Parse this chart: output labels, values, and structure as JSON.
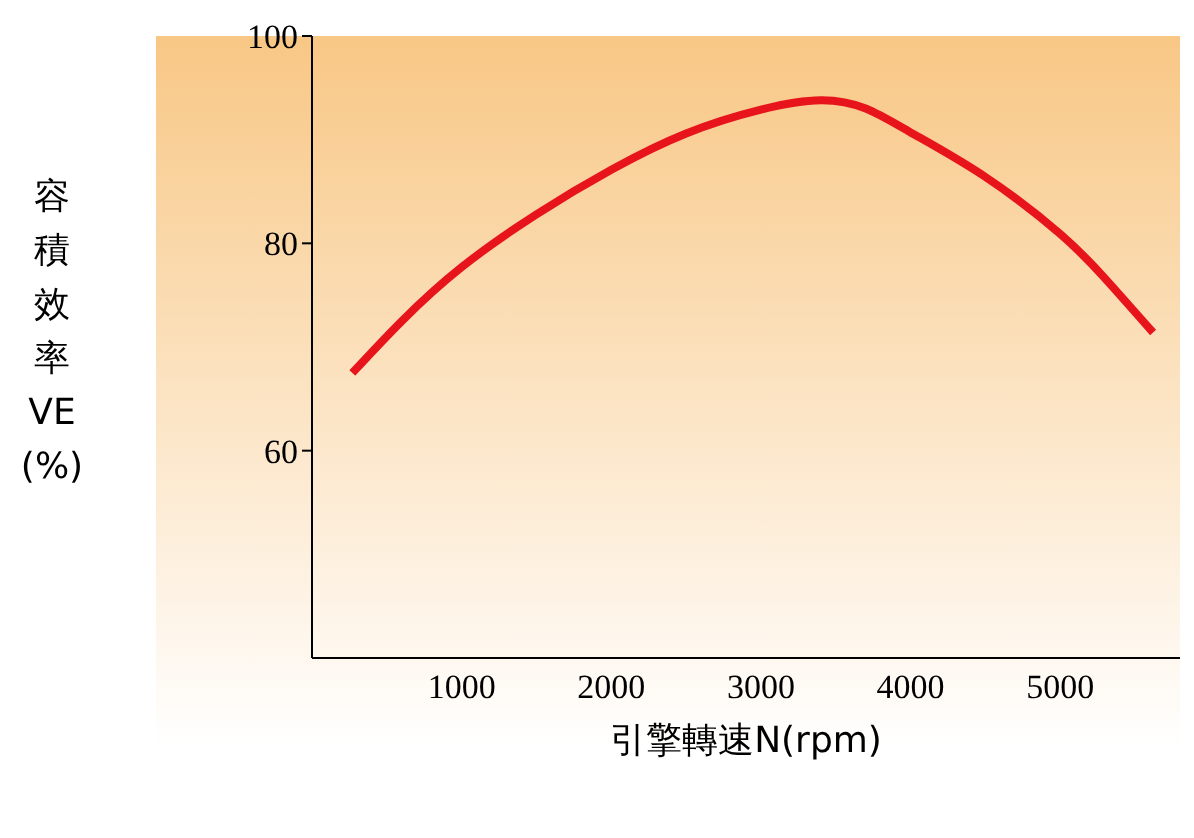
{
  "chart_data": {
    "type": "line",
    "xlabel": "引擎轉速N(rpm)",
    "ylabel": "容積效率 VE (%)",
    "x": [
      270,
      600,
      1000,
      1500,
      2000,
      2500,
      3000,
      3400,
      3700,
      4000,
      4500,
      5000,
      5300,
      5620
    ],
    "series": [
      {
        "color": "#e8141c",
        "values": [
          67.5,
          72.5,
          77.7,
          82.8,
          87.1,
          90.6,
          92.9,
          93.8,
          93.0,
          90.7,
          86.4,
          80.9,
          76.6,
          71.4
        ]
      }
    ],
    "xlim": [
      0,
      5800
    ],
    "xticks": [
      1000,
      2000,
      3000,
      4000,
      5000
    ],
    "ylim": [
      40,
      100
    ],
    "yticks": [
      60,
      80,
      100
    ],
    "marker": "none",
    "line_style": "solid"
  }
}
